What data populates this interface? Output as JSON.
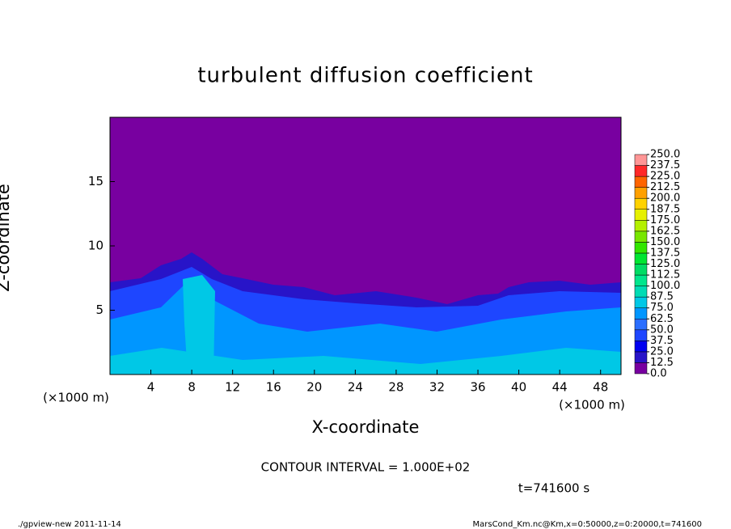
{
  "chart_data": {
    "type": "contour",
    "title": "turbulent diffusion coefficient",
    "x_label": "X-coordinate",
    "y_label": "Z-coordinate",
    "x_unit": "(×1000 m)",
    "xlim": [
      0,
      50
    ],
    "xticks": [
      4,
      8,
      12,
      16,
      20,
      24,
      28,
      32,
      36,
      40,
      44,
      48
    ],
    "ylim": [
      0,
      20
    ],
    "yticks": [
      5,
      10,
      15
    ],
    "colorbar": {
      "levels": [
        {
          "value": 0,
          "label": "0.0"
        },
        {
          "value": 12.5,
          "label": "12.5"
        },
        {
          "value": 25,
          "label": "25.0"
        },
        {
          "value": 37.5,
          "label": "37.5"
        },
        {
          "value": 50,
          "label": "50.0"
        },
        {
          "value": 62.5,
          "label": "62.5"
        },
        {
          "value": 75,
          "label": "75.0"
        },
        {
          "value": 87.5,
          "label": "87.5"
        },
        {
          "value": 100,
          "label": "100.0"
        },
        {
          "value": 112.5,
          "label": "112.5"
        },
        {
          "value": 125,
          "label": "125.0"
        },
        {
          "value": 137.5,
          "label": "137.5"
        },
        {
          "value": 150,
          "label": "150.0"
        },
        {
          "value": 162.5,
          "label": "162.5"
        },
        {
          "value": 175,
          "label": "175.0"
        },
        {
          "value": 187.5,
          "label": "187.5"
        },
        {
          "value": 200,
          "label": "200.0"
        },
        {
          "value": 212.5,
          "label": "212.5"
        },
        {
          "value": 225,
          "label": "225.0"
        },
        {
          "value": 237.5,
          "label": "237.5"
        },
        {
          "value": 250,
          "label": "250.0"
        }
      ],
      "colors": [
        "#7800a0",
        "#2814c8",
        "#0000f0",
        "#1e46ff",
        "#2a6eff",
        "#0096ff",
        "#00c8e6",
        "#00dcb4",
        "#00e68c",
        "#00dc64",
        "#00e632",
        "#32e600",
        "#78e600",
        "#b4f000",
        "#e6f000",
        "#ffd200",
        "#ffa000",
        "#ff6400",
        "#ff2828",
        "#ff9696"
      ]
    },
    "annotations": [
      "CONTOUR INTERVAL = 1.000E+02",
      "t=741600 s"
    ],
    "footer_left": "./gpview-new  2011-11-14",
    "footer_right": "MarsCond_Km.nc@Km,x=0:50000,z=0:20000,t=741600"
  }
}
